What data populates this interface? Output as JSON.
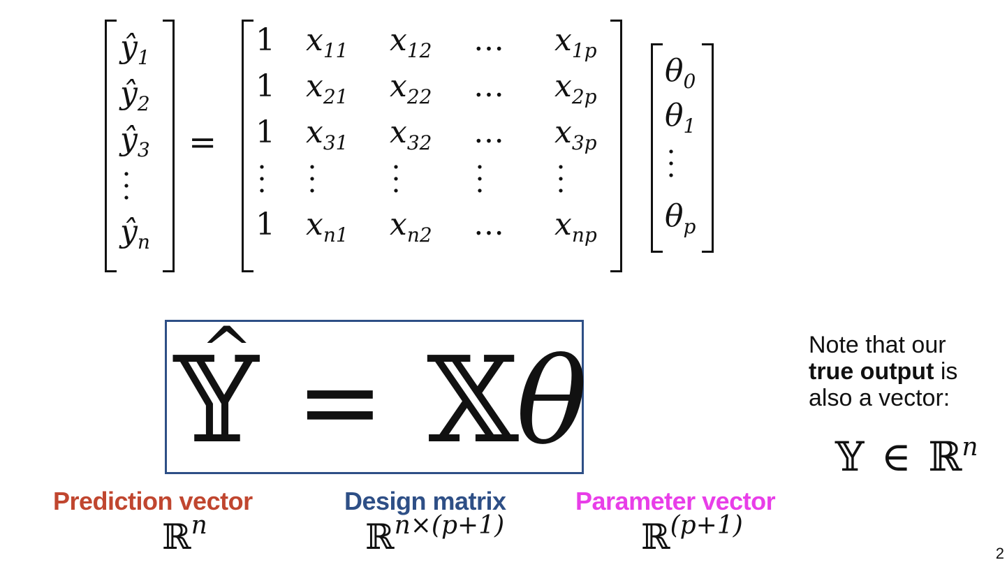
{
  "prediction_column": {
    "entries": [
      {
        "base": "ŷ",
        "sub": "1"
      },
      {
        "base": "ŷ",
        "sub": "2"
      },
      {
        "base": "ŷ",
        "sub": "3"
      },
      {
        "base": "⋮",
        "sub": ""
      },
      {
        "base": "ŷ",
        "sub": "n"
      }
    ]
  },
  "equals_sign": "=",
  "design_matrix": {
    "rows": [
      [
        "1",
        "x|11",
        "x|12",
        "…",
        "x|1p"
      ],
      [
        "1",
        "x|21",
        "x|22",
        "…",
        "x|2p"
      ],
      [
        "1",
        "x|31",
        "x|32",
        "…",
        "x|3p"
      ],
      [
        "⋮",
        "⋮",
        "⋮",
        "⋮",
        "⋮"
      ],
      [
        "1",
        "x|n1",
        "x|n2",
        "…",
        "x|np"
      ]
    ]
  },
  "parameter_column": {
    "entries": [
      {
        "base": "θ",
        "sub": "0"
      },
      {
        "base": "θ",
        "sub": "1"
      },
      {
        "base": "⋮",
        "sub": ""
      },
      {
        "base": "θ",
        "sub": "p"
      }
    ]
  },
  "boxed_equation": {
    "lhs": "𝕐",
    "hat": "^",
    "equals": "=",
    "rhs_matrix": "𝕏",
    "rhs_param": "θ"
  },
  "captions": {
    "prediction": {
      "label": "Prediction vector",
      "space_base": "ℝ",
      "space_sup": "n",
      "color": "#c0462f"
    },
    "design": {
      "label": "Design matrix",
      "space_base": "ℝ",
      "space_sup": "n×(p+1)",
      "color": "#2e4f86"
    },
    "parameter": {
      "label": "Parameter vector",
      "space_base": "ℝ",
      "space_sup": "(p+1)",
      "color": "#e83ee8"
    }
  },
  "note": {
    "line1": "Note that our",
    "bold": "true output",
    "after_bold": " is",
    "line3": "also a vector:",
    "math_lhs": "𝕐",
    "math_in": "∈",
    "math_rhs": "ℝ",
    "math_sup": "n"
  },
  "page_number": "2"
}
